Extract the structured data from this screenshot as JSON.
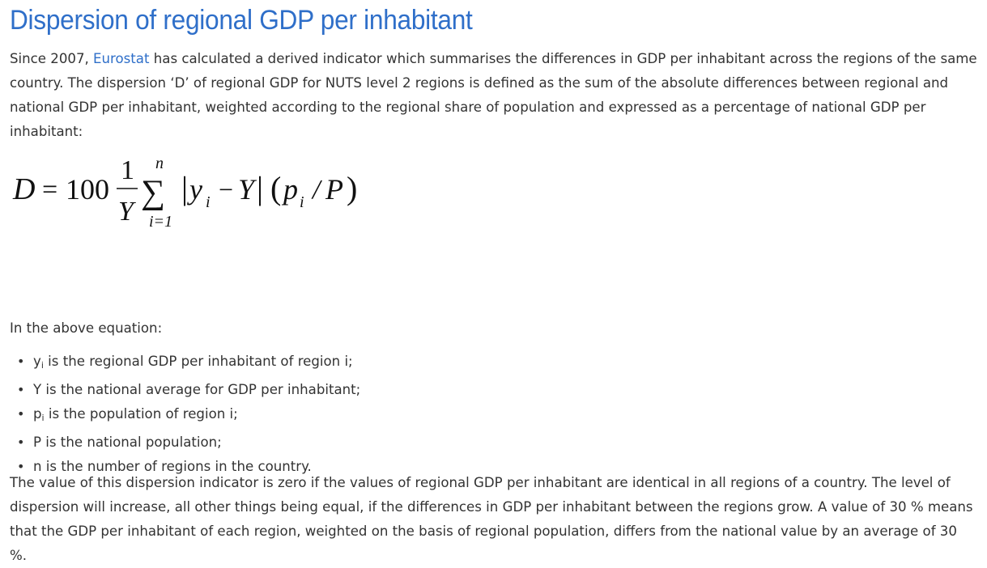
{
  "heading": "Dispersion of regional GDP per inhabitant",
  "intro": {
    "before_link": "Since 2007, ",
    "link": "Eurostat",
    "after_link": " has calculated a derived indicator which summarises the differences in GDP per inhabitant across the regions of the same country. The dispersion ‘D’ of regional GDP for NUTS level 2 regions is defined as the sum of the absolute differences between regional and national GDP per inhabitant, weighted according to the regional share of population and expressed as a percentage of national GDP per inhabitant:"
  },
  "formula": {
    "lhs": "D",
    "eq": "=",
    "coef": "100",
    "frac_num": "1",
    "frac_den": "Y",
    "sum": "∑",
    "sum_upper": "n",
    "sum_lower": "i=1",
    "bar_left": "|",
    "y": "y",
    "y_sub": "i",
    "minus": "−",
    "Y": "Y",
    "bar_right": "|",
    "lp": "(",
    "p": "p",
    "p_sub": "i",
    "slash": "/",
    "P": "P",
    "rp": ")"
  },
  "above_text": "In the above equation:",
  "definitions": [
    {
      "sym": "y",
      "sub": "i",
      "text": " is the regional GDP per inhabitant of region i;"
    },
    {
      "sym": "Y is the national average for GDP per inhabitant;",
      "sub": "",
      "text": ""
    },
    {
      "sym": "p",
      "sub": "i",
      "text": " is the population of region i;"
    },
    {
      "sym": "P is the national population;",
      "sub": "",
      "text": ""
    },
    {
      "sym": "n is the number of regions in the country.",
      "sub": "",
      "text": ""
    }
  ],
  "closing": "The value of this dispersion indicator is zero if the values of regional GDP per inhabitant are identical in all regions of a country. The level of dispersion will increase, all other things being equal, if the differences in GDP per inhabitant between the regions grow. A value of 30 % means that the GDP per inhabitant of each region, weighted on the basis of regional population, differs from the national value by an average of 30 %."
}
